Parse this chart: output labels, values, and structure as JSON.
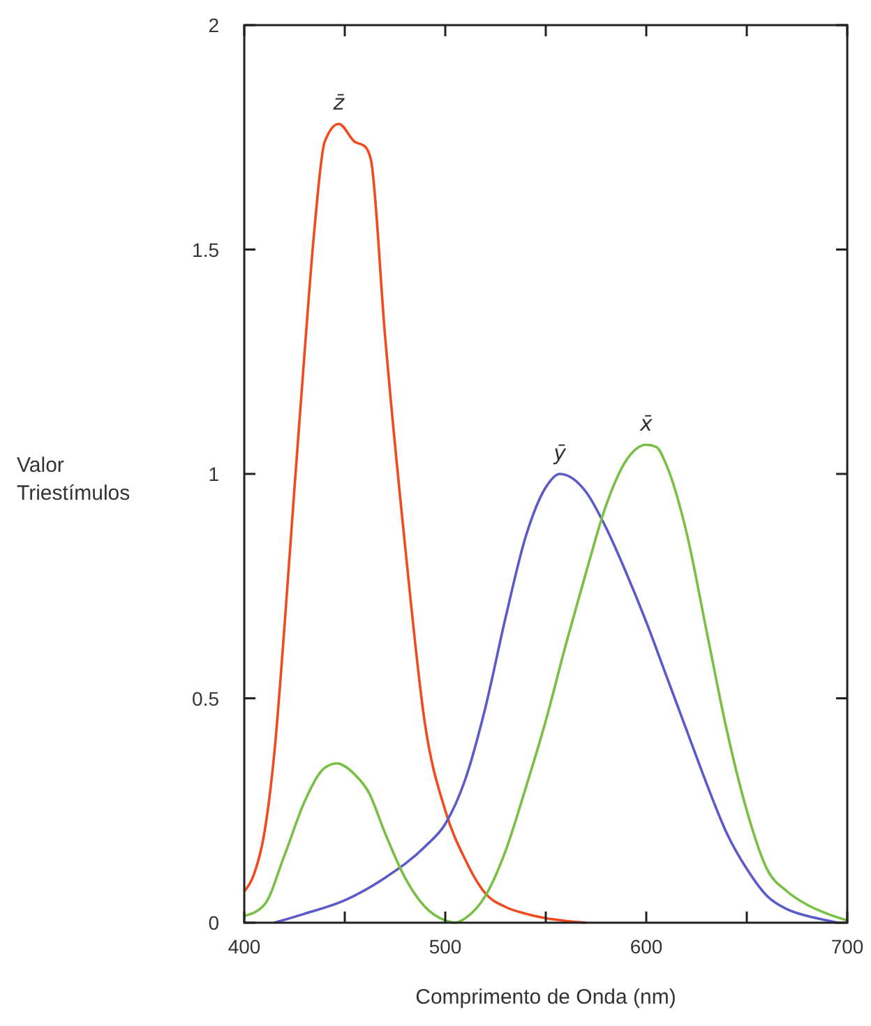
{
  "chart_data": {
    "type": "line",
    "xlabel": "Comprimento de Onda (nm)",
    "ylabel": "Valor\nTriestímulos",
    "xlim": [
      400,
      700
    ],
    "ylim": [
      0,
      2
    ],
    "xticks": [
      400,
      {
        "value": 450,
        "label": null
      },
      500,
      {
        "value": 550,
        "label": null
      },
      600,
      {
        "value": 650,
        "label": null
      },
      700
    ],
    "yticks": [
      0,
      0.5,
      1,
      1.5,
      2
    ],
    "grid": false,
    "legend": false,
    "marker": "none",
    "line_style": "solid",
    "series": [
      {
        "name": "z̄",
        "color": "#f04a1e",
        "x": [
          400,
          405,
          410,
          415,
          420,
          425,
          430,
          435,
          440,
          447,
          455,
          460,
          463,
          470,
          480,
          490,
          500,
          510,
          520,
          530,
          540,
          550,
          560,
          570
        ],
        "values": [
          0.07,
          0.11,
          0.2,
          0.38,
          0.66,
          0.97,
          1.27,
          1.55,
          1.74,
          1.78,
          1.74,
          1.73,
          1.7,
          1.31,
          0.84,
          0.44,
          0.25,
          0.14,
          0.065,
          0.035,
          0.02,
          0.01,
          0.004,
          0
        ]
      },
      {
        "name": "ȳ",
        "color": "#5a5ac8",
        "x": [
          415,
          430,
          450,
          470,
          490,
          500,
          510,
          520,
          530,
          540,
          550,
          557,
          570,
          580,
          590,
          600,
          610,
          620,
          630,
          640,
          650,
          660,
          670,
          680,
          690,
          695
        ],
        "values": [
          0,
          0.02,
          0.05,
          0.1,
          0.17,
          0.22,
          0.32,
          0.48,
          0.68,
          0.86,
          0.97,
          1.0,
          0.96,
          0.88,
          0.78,
          0.67,
          0.55,
          0.43,
          0.31,
          0.2,
          0.12,
          0.06,
          0.03,
          0.015,
          0.005,
          0
        ]
      },
      {
        "name": "x̄",
        "color": "#77c043",
        "x": [
          400,
          410,
          420,
          430,
          440,
          446,
          455,
          462,
          470,
          480,
          490,
          500,
          505,
          510,
          520,
          530,
          540,
          550,
          560,
          570,
          580,
          590,
          600,
          605,
          610,
          620,
          630,
          640,
          650,
          660,
          670,
          680,
          690,
          700
        ],
        "values": [
          0.015,
          0.04,
          0.15,
          0.27,
          0.345,
          0.355,
          0.33,
          0.29,
          0.2,
          0.1,
          0.035,
          0.005,
          0,
          0.01,
          0.06,
          0.16,
          0.3,
          0.45,
          0.62,
          0.78,
          0.93,
          1.03,
          1.065,
          1.06,
          1.02,
          0.87,
          0.65,
          0.43,
          0.25,
          0.12,
          0.07,
          0.04,
          0.02,
          0.005
        ]
      }
    ]
  }
}
